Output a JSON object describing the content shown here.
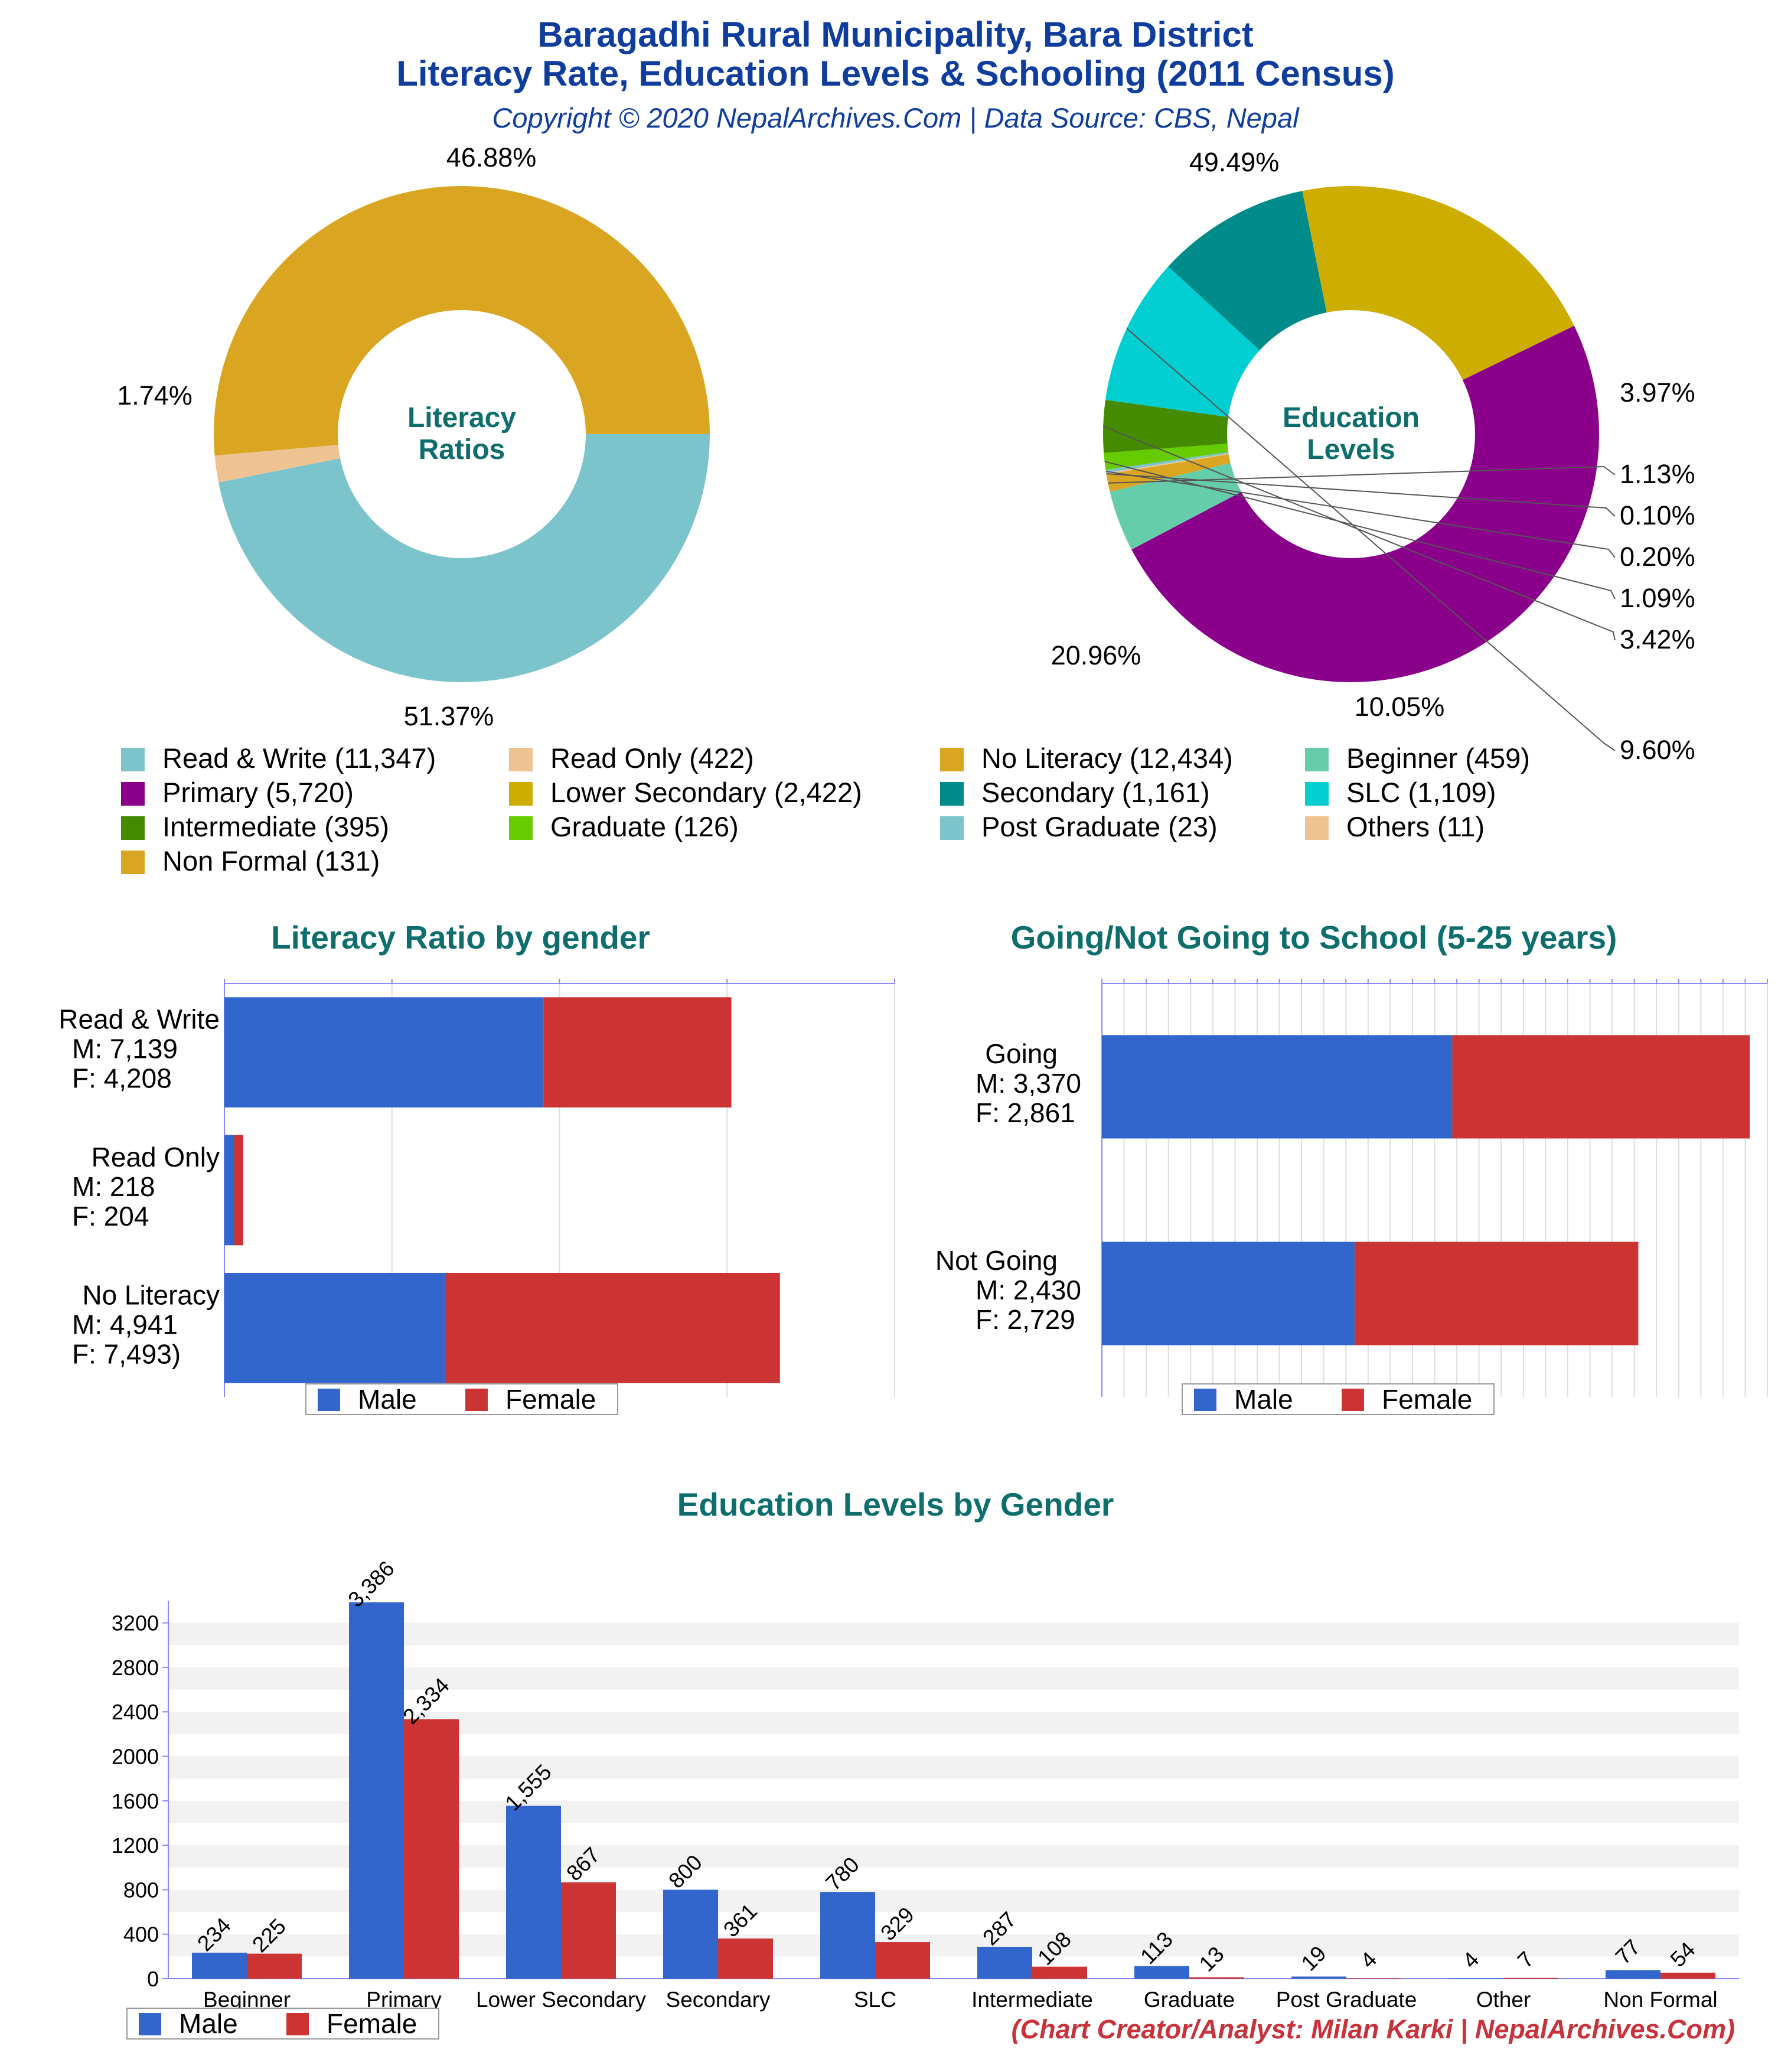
{
  "header": {
    "title_line1": "Baragadhi Rural Municipality, Bara District",
    "title_line2": "Literacy Rate, Education Levels & Schooling (2011 Census)",
    "subtitle": "Copyright © 2020 NepalArchives.Com | Data Source: CBS, Nepal"
  },
  "footer": "(Chart Creator/Analyst: Milan Karki | NepalArchives.Com)",
  "colors": {
    "male": "#3366cc",
    "female": "#cc3333",
    "title_blue": "#0f3d9e",
    "teal": "#0e6e6e"
  },
  "chart_data": [
    {
      "type": "pie",
      "center_label": [
        "Literacy",
        "Ratios"
      ],
      "slices": [
        {
          "label": "Read & Write",
          "value": 11347,
          "pct_label": "46.88%",
          "color": "#7cc4cc"
        },
        {
          "label": "Read Only",
          "value": 422,
          "pct_label": "1.74%",
          "color": "#efc292"
        },
        {
          "label": "No Literacy",
          "value": 12434,
          "pct_label": "51.37%",
          "color": "#daa520"
        }
      ]
    },
    {
      "type": "pie",
      "center_label": [
        "Education",
        "Levels"
      ],
      "slices": [
        {
          "label": "Primary",
          "value": 5720,
          "pct_label": "49.49%",
          "color": "#8b008b"
        },
        {
          "label": "Beginner",
          "value": 459,
          "pct_label": "3.97%",
          "color": "#66cdaa"
        },
        {
          "label": "Non Formal",
          "value": 131,
          "pct_label": "1.13%",
          "color": "#daa520"
        },
        {
          "label": "Others",
          "value": 11,
          "pct_label": "0.10%",
          "color": "#efc292"
        },
        {
          "label": "Post Graduate",
          "value": 23,
          "pct_label": "0.20%",
          "color": "#7cc4cc"
        },
        {
          "label": "Graduate",
          "value": 126,
          "pct_label": "1.09%",
          "color": "#66cc00"
        },
        {
          "label": "Intermediate",
          "value": 395,
          "pct_label": "3.42%",
          "color": "#458b00"
        },
        {
          "label": "SLC",
          "value": 1109,
          "pct_label": "9.60%",
          "color": "#00ced1"
        },
        {
          "label": "Secondary",
          "value": 1161,
          "pct_label": "10.05%",
          "color": "#008b8b"
        },
        {
          "label": "Lower Secondary",
          "value": 2422,
          "pct_label": "20.96%",
          "color": "#ccad00"
        }
      ]
    },
    {
      "type": "bar",
      "title": "Literacy Ratio by gender",
      "orientation": "horizontal",
      "stacked": true,
      "categories": [
        "Read & Write",
        "Read Only",
        "No Literacy"
      ],
      "category_labels": [
        [
          "Read & Write",
          "M: 7,139",
          "F: 4,208"
        ],
        [
          "Read Only",
          "M: 218",
          "F: 204"
        ],
        [
          "No Literacy",
          "M: 4,941",
          "F: 7,493)"
        ]
      ],
      "series": [
        {
          "name": "Male",
          "values": [
            7139,
            218,
            4941
          ]
        },
        {
          "name": "Female",
          "values": [
            4208,
            204,
            7493
          ]
        }
      ],
      "xlim": [
        0,
        15000
      ],
      "legend": "bottom"
    },
    {
      "type": "bar",
      "title": "Going/Not Going to School (5-25 years)",
      "orientation": "horizontal",
      "stacked": true,
      "categories": [
        "Going",
        "Not Going"
      ],
      "category_labels": [
        [
          "Going",
          "M: 3,370",
          "F: 2,861"
        ],
        [
          "Not Going",
          "M: 2,430",
          "F: 2,729"
        ]
      ],
      "series": [
        {
          "name": "Male",
          "values": [
            3370,
            2430
          ]
        },
        {
          "name": "Female",
          "values": [
            2861,
            2729
          ]
        }
      ],
      "xlim": [
        0,
        6400
      ],
      "legend": "bottom"
    },
    {
      "type": "bar",
      "title": "Education Levels by Gender",
      "categories": [
        "Beginner",
        "Primary",
        "Lower Secondary",
        "Secondary",
        "SLC",
        "Intermediate",
        "Graduate",
        "Post Graduate",
        "Other",
        "Non Formal"
      ],
      "series": [
        {
          "name": "Male",
          "values": [
            234,
            3386,
            1555,
            800,
            780,
            287,
            113,
            19,
            4,
            77
          ],
          "labels": [
            "234",
            "3,386",
            "1,555",
            "800",
            "780",
            "287",
            "113",
            "19",
            "4",
            "77"
          ]
        },
        {
          "name": "Female",
          "values": [
            225,
            2334,
            867,
            361,
            329,
            108,
            13,
            4,
            7,
            54
          ],
          "labels": [
            "225",
            "2,334",
            "867",
            "361",
            "329",
            "108",
            "13",
            "4",
            "7",
            "54"
          ]
        }
      ],
      "yticks": [
        "0",
        "400",
        "800",
        "1200",
        "1600",
        "2000",
        "2400",
        "2800",
        "3200"
      ],
      "ylim": [
        0,
        3400
      ],
      "legend": "bottom-left"
    }
  ],
  "legend_top": [
    {
      "label": "Read & Write (11,347)",
      "color": "#7cc4cc"
    },
    {
      "label": "Read Only (422)",
      "color": "#efc292"
    },
    {
      "label": "No Literacy (12,434)",
      "color": "#daa520"
    },
    {
      "label": "Beginner (459)",
      "color": "#66cdaa"
    },
    {
      "label": "Primary (5,720)",
      "color": "#8b008b"
    },
    {
      "label": "Lower Secondary (2,422)",
      "color": "#ccad00"
    },
    {
      "label": "Secondary (1,161)",
      "color": "#008b8b"
    },
    {
      "label": "SLC (1,109)",
      "color": "#00ced1"
    },
    {
      "label": "Intermediate (395)",
      "color": "#458b00"
    },
    {
      "label": "Graduate (126)",
      "color": "#66cc00"
    },
    {
      "label": "Post Graduate (23)",
      "color": "#7cc4cc"
    },
    {
      "label": "Others (11)",
      "color": "#efc292"
    },
    {
      "label": "Non Formal (131)",
      "color": "#daa520"
    }
  ]
}
